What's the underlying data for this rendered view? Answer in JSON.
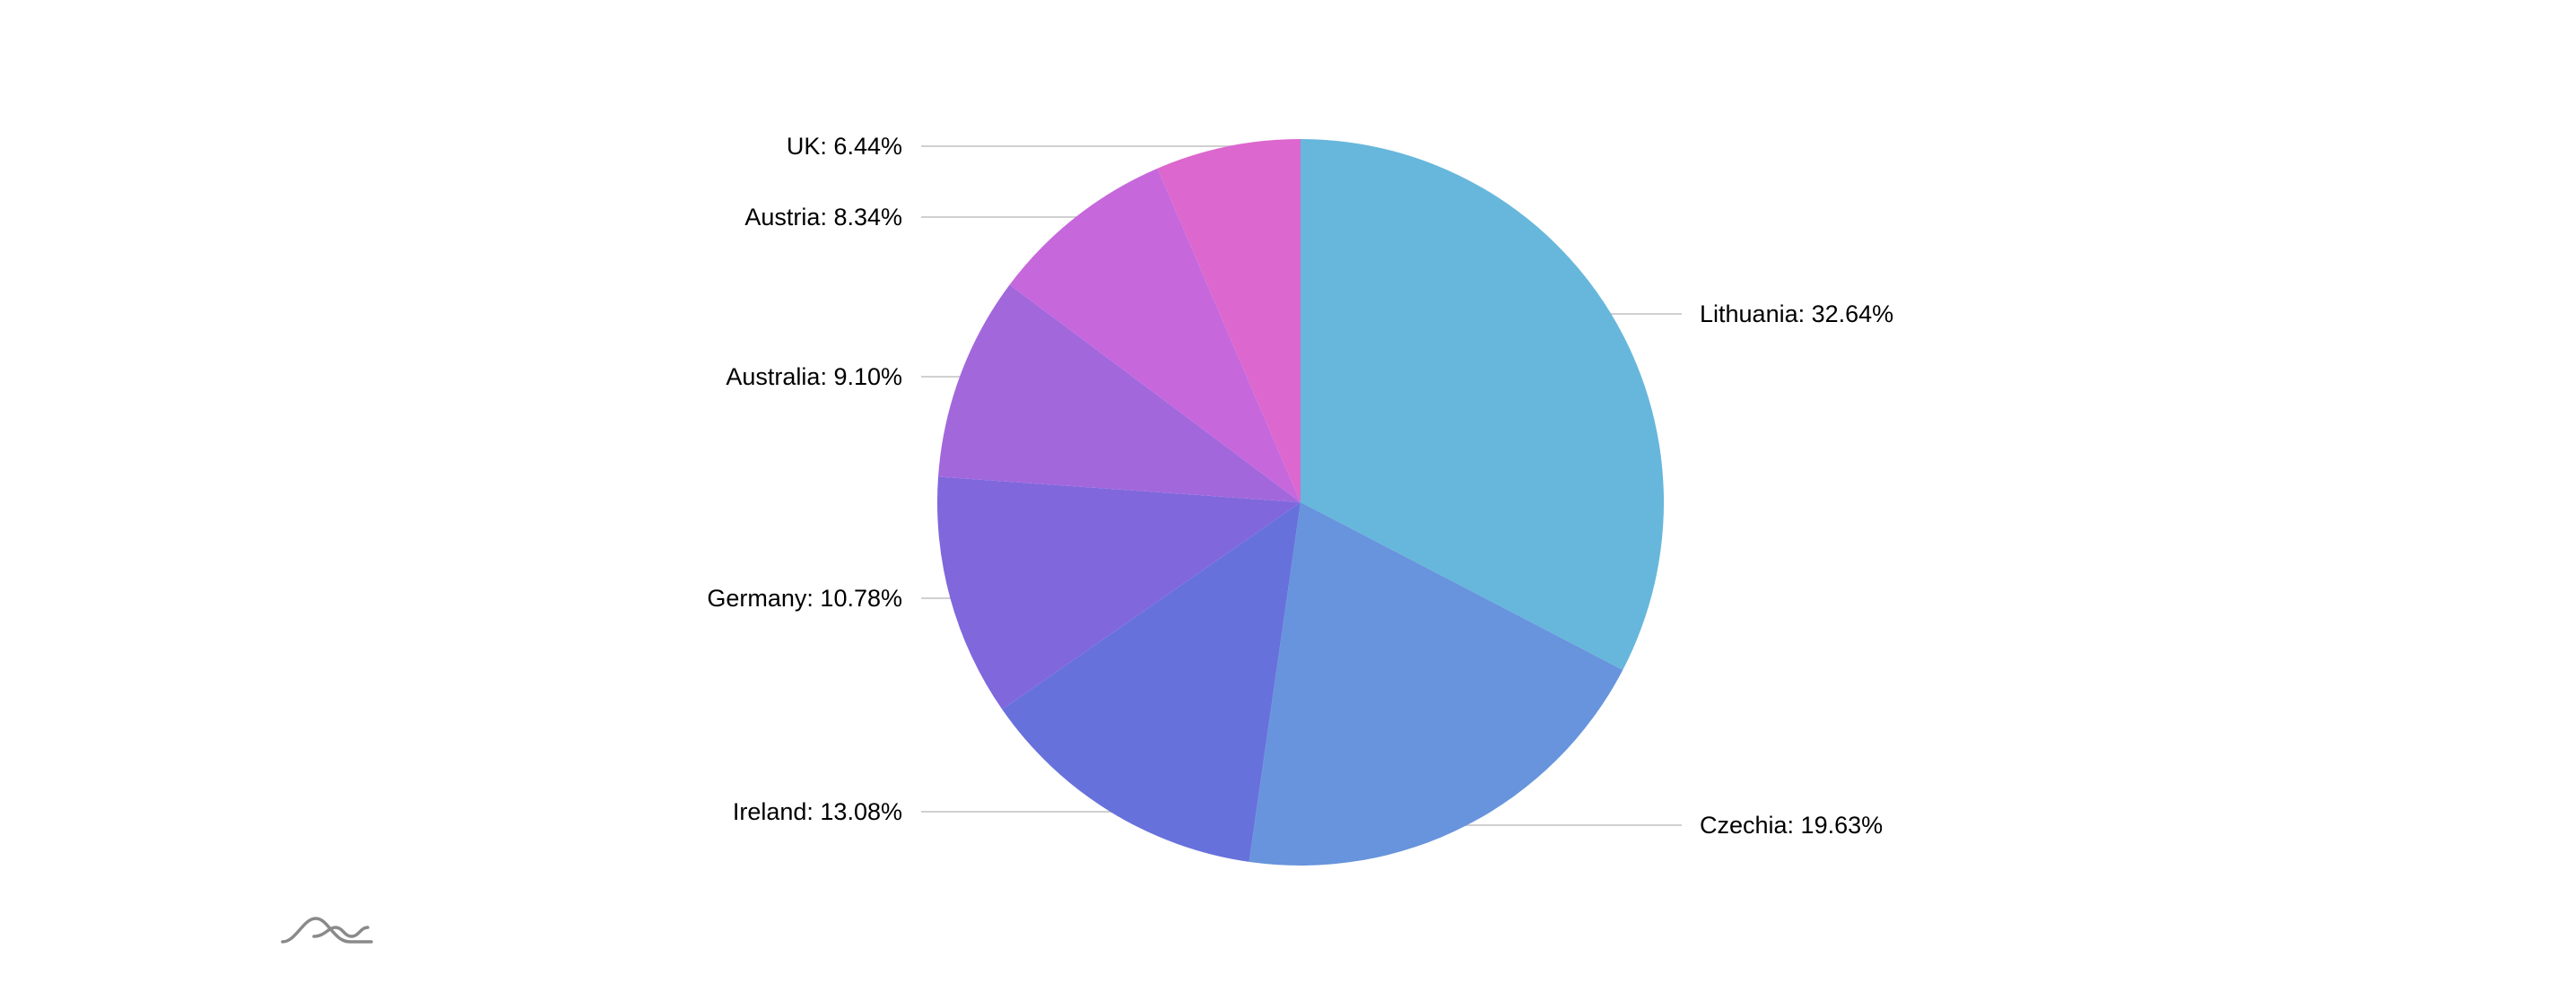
{
  "chart_data": {
    "type": "pie",
    "slices": [
      {
        "label": "Lithuania",
        "value": 32.64,
        "text": "Lithuania: 32.64%",
        "color": "#67b7dc"
      },
      {
        "label": "Czechia",
        "value": 19.63,
        "text": "Czechia: 19.63%",
        "color": "#6794dc"
      },
      {
        "label": "Ireland",
        "value": 13.08,
        "text": "Ireland: 13.08%",
        "color": "#6771dc"
      },
      {
        "label": "Germany",
        "value": 10.78,
        "text": "Germany: 10.78%",
        "color": "#8067dc"
      },
      {
        "label": "Australia",
        "value": 9.1,
        "text": "Australia: 9.10%",
        "color": "#a367dc"
      },
      {
        "label": "Austria",
        "value": 8.34,
        "text": "Austria: 8.34%",
        "color": "#c767dc"
      },
      {
        "label": "UK",
        "value": 6.44,
        "text": "UK: 6.44%",
        "color": "#dc67ce"
      }
    ],
    "start_angle": "top",
    "direction": "clockwise",
    "legend": "none"
  },
  "logo": {
    "icon": "amcharts-logo-icon"
  }
}
